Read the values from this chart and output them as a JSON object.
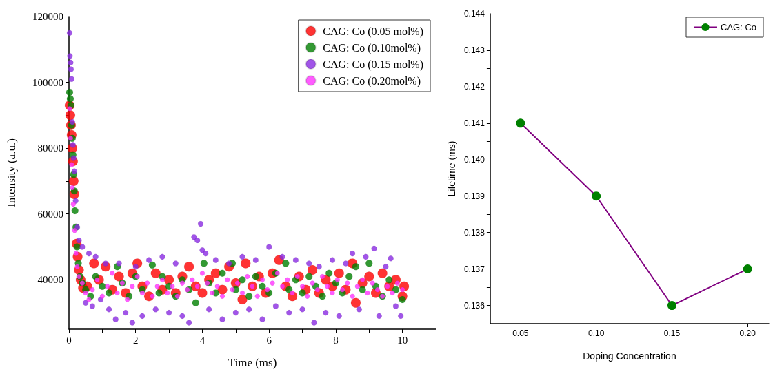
{
  "chart_data": [
    {
      "type": "scatter",
      "xlabel": "Time (ms)",
      "ylabel": "Intensity (a.u.)",
      "xlim": [
        0,
        11
      ],
      "ylim": [
        25000,
        120000
      ],
      "xticks": [
        0,
        {
          "value": 1,
          "label": null
        },
        2,
        {
          "value": 3,
          "label": null
        },
        4,
        {
          "value": 5,
          "label": null
        },
        6,
        {
          "value": 7,
          "label": null
        },
        8,
        {
          "value": 9,
          "label": null
        },
        10,
        {
          "value": 11,
          "label": null
        }
      ],
      "yticks": [
        {
          "value": 30000,
          "label": null
        },
        40000,
        {
          "value": 50000,
          "label": null
        },
        60000,
        {
          "value": 70000,
          "label": null
        },
        80000,
        {
          "value": 90000,
          "label": null
        },
        100000,
        {
          "value": 110000,
          "label": null
        },
        120000
      ],
      "legend": "top right",
      "marker": "circle",
      "grid": false,
      "series": [
        {
          "name": "CAG: Co (0.05 mol%)",
          "color": "#ff0000",
          "x": [
            0.02,
            0.04,
            0.06,
            0.08,
            0.1,
            0.12,
            0.14,
            0.16,
            0.18,
            0.2,
            0.23,
            0.26,
            0.3,
            0.35,
            0.42,
            0.55,
            0.75,
            0.9,
            1.1,
            1.3,
            1.5,
            1.7,
            1.9,
            2.05,
            2.2,
            2.4,
            2.6,
            2.8,
            3.0,
            3.2,
            3.4,
            3.6,
            3.8,
            4.0,
            4.2,
            4.4,
            4.6,
            4.8,
            5.0,
            5.2,
            5.3,
            5.5,
            5.7,
            5.9,
            6.1,
            6.3,
            6.5,
            6.7,
            6.9,
            7.1,
            7.3,
            7.5,
            7.7,
            7.9,
            8.1,
            8.3,
            8.5,
            8.6,
            8.8,
            9.0,
            9.2,
            9.4,
            9.6,
            9.8,
            10.0,
            10.05
          ],
          "values": [
            93000,
            90000,
            87000,
            84000,
            80000,
            76000,
            70000,
            66000,
            null,
            null,
            51000,
            47000,
            43000,
            40000,
            37500,
            38000,
            45000,
            40000,
            44000,
            37000,
            41000,
            36000,
            42000,
            45000,
            38000,
            35000,
            42000,
            37000,
            40000,
            36000,
            41000,
            44000,
            38000,
            36000,
            40000,
            42000,
            37000,
            44000,
            39000,
            34000,
            45000,
            38000,
            41000,
            36000,
            42000,
            46000,
            38000,
            35000,
            41000,
            37000,
            43000,
            36000,
            40000,
            38000,
            42000,
            37000,
            45000,
            33000,
            39000,
            41000,
            36000,
            42000,
            38000,
            40000,
            35000,
            38000
          ]
        },
        {
          "name": "CAG: Co (0.10mol%)",
          "color": "#008000",
          "x": [
            0.02,
            0.04,
            0.06,
            0.08,
            0.1,
            0.12,
            0.14,
            0.16,
            0.18,
            0.21,
            0.24,
            0.28,
            0.33,
            0.4,
            0.5,
            0.65,
            0.8,
            1.0,
            1.2,
            1.45,
            1.6,
            1.8,
            2.0,
            2.2,
            2.5,
            2.7,
            2.8,
            3.0,
            3.2,
            3.4,
            3.6,
            3.8,
            4.05,
            4.2,
            4.4,
            4.6,
            4.9,
            5.0,
            5.2,
            5.4,
            5.6,
            5.8,
            6.0,
            6.2,
            6.5,
            6.6,
            6.8,
            7.0,
            7.2,
            7.4,
            7.6,
            7.8,
            8.0,
            8.2,
            8.4,
            8.6,
            8.8,
            9.0,
            9.2,
            9.4,
            9.6,
            9.8,
            10.0
          ],
          "values": [
            97000,
            95000,
            93000,
            87000,
            83000,
            78000,
            72000,
            67000,
            61000,
            56000,
            50000,
            45000,
            41000,
            39000,
            37000,
            35000,
            41000,
            38000,
            36000,
            44000,
            39000,
            35000,
            41000,
            37000,
            44500,
            36000,
            41000,
            38000,
            35000,
            40000,
            37000,
            33000,
            45000,
            39000,
            36000,
            42000,
            45000,
            37000,
            40000,
            35000,
            41000,
            38000,
            36000,
            42000,
            45000,
            37000,
            40000,
            36000,
            41000,
            38000,
            35000,
            42000,
            39000,
            36000,
            41000,
            44000,
            37000,
            45000,
            38000,
            35000,
            40000,
            37000,
            34000
          ]
        },
        {
          "name": "CAG: Co (0.15 mol%)",
          "color": "#8a2be2",
          "x": [
            0.02,
            0.03,
            0.05,
            0.06,
            0.08,
            0.1,
            0.12,
            0.14,
            0.16,
            0.2,
            0.25,
            0.3,
            0.4,
            0.5,
            0.6,
            0.7,
            0.8,
            0.95,
            1.1,
            1.2,
            1.4,
            1.5,
            1.7,
            1.9,
            2.0,
            2.2,
            2.4,
            2.6,
            2.8,
            3.0,
            3.2,
            3.4,
            3.6,
            3.75,
            3.85,
            3.95,
            4.0,
            4.1,
            4.2,
            4.4,
            4.6,
            4.8,
            5.0,
            5.2,
            5.4,
            5.6,
            5.8,
            6.0,
            6.2,
            6.4,
            6.6,
            6.8,
            7.0,
            7.2,
            7.35,
            7.5,
            7.7,
            7.9,
            8.1,
            8.3,
            8.5,
            8.7,
            8.9,
            9.15,
            9.3,
            9.5,
            9.65,
            9.8,
            9.95
          ],
          "values": [
            115000,
            108000,
            106000,
            104000,
            101000,
            88000,
            81000,
            77000,
            73000,
            64000,
            56000,
            52000,
            50000,
            33000,
            48000,
            32000,
            47000,
            34000,
            45000,
            31000,
            28000,
            45000,
            30000,
            27000,
            44000,
            29000,
            46000,
            31000,
            47000,
            30000,
            45000,
            29000,
            27000,
            53000,
            52000,
            57000,
            49000,
            48000,
            31000,
            46000,
            28000,
            45000,
            30000,
            47000,
            31000,
            46000,
            28000,
            50000,
            32000,
            47000,
            30000,
            46000,
            31000,
            45000,
            27000,
            44000,
            30000,
            46000,
            29000,
            45000,
            48000,
            31000,
            47000,
            49500,
            29000,
            44000,
            46500,
            32000,
            29000
          ]
        },
        {
          "name": "CAG: Co (0.20mol%)",
          "color": "#ff33ff",
          "x": [
            0.02,
            0.05,
            0.08,
            0.1,
            0.13,
            0.17,
            0.21,
            0.25,
            0.3,
            0.4,
            0.5,
            0.6,
            0.7,
            0.85,
            1.0,
            1.15,
            1.3,
            1.45,
            1.6,
            1.75,
            1.9,
            2.05,
            2.2,
            2.35,
            2.5,
            2.65,
            2.8,
            2.95,
            3.1,
            3.25,
            3.4,
            3.55,
            3.7,
            3.85,
            4.0,
            4.15,
            4.3,
            4.45,
            4.6,
            4.75,
            4.9,
            5.05,
            5.2,
            5.35,
            5.5,
            5.65,
            5.8,
            5.95,
            6.1,
            6.25,
            6.4,
            6.55,
            6.7,
            6.85,
            7.0,
            7.15,
            7.3,
            7.45,
            7.6,
            7.75,
            7.9,
            8.05,
            8.2,
            8.35,
            8.5,
            8.65,
            8.8,
            8.95,
            9.1,
            9.25,
            9.4,
            9.55,
            9.7,
            9.85,
            10.0
          ],
          "values": [
            92000,
            83000,
            75000,
            68000,
            63000,
            55000,
            48000,
            44000,
            41000,
            39000,
            36000,
            34000,
            37000,
            40000,
            35000,
            38000,
            42000,
            36000,
            39000,
            34000,
            38000,
            41000,
            36000,
            39000,
            35000,
            38000,
            40000,
            36000,
            38000,
            35000,
            39000,
            37000,
            40000,
            38000,
            42000,
            39000,
            36000,
            38000,
            35000,
            40000,
            37000,
            39000,
            36000,
            41000,
            38000,
            35000,
            40000,
            37000,
            39000,
            42000,
            38000,
            40000,
            36000,
            41000,
            38000,
            35000,
            39000,
            37000,
            41000,
            38000,
            36000,
            40000,
            37000,
            39000,
            35000,
            38000,
            40000,
            36000,
            39000,
            37000,
            35000,
            38000,
            36000,
            39000,
            37000
          ]
        }
      ]
    },
    {
      "type": "line",
      "xlabel": "Doping Concentration",
      "ylabel": "Lifetime (ms)",
      "xlim": [
        0.03,
        0.214
      ],
      "ylim": [
        0.1355,
        0.144
      ],
      "xticks": [
        {
          "value": 0.05,
          "label": "0.05"
        },
        {
          "value": 0.075,
          "label": null
        },
        {
          "value": 0.1,
          "label": "0.10"
        },
        {
          "value": 0.125,
          "label": null
        },
        {
          "value": 0.15,
          "label": "0.15"
        },
        {
          "value": 0.175,
          "label": null
        },
        {
          "value": 0.2,
          "label": "0.20"
        }
      ],
      "yticks": [
        0.136,
        {
          "value": 0.1365,
          "label": null
        },
        0.137,
        {
          "value": 0.1375,
          "label": null
        },
        0.138,
        {
          "value": 0.1385,
          "label": null
        },
        0.139,
        {
          "value": 0.1395,
          "label": null
        },
        {
          "value": 0.14,
          "label": "0.140"
        },
        {
          "value": 0.1405,
          "label": null
        },
        0.141,
        {
          "value": 0.1415,
          "label": null
        },
        0.142,
        {
          "value": 0.1425,
          "label": null
        },
        0.143,
        {
          "value": 0.1435,
          "label": null
        },
        0.144
      ],
      "legend": "top right",
      "marker": "circle",
      "grid": false,
      "series": [
        {
          "name": "CAG: Co",
          "color": "#800080",
          "colors": [
            "#008000",
            "#008000",
            "#008000",
            "#008000"
          ],
          "x": [
            0.05,
            0.1,
            0.15,
            0.2
          ],
          "values": [
            0.141,
            0.139,
            0.136,
            0.137
          ]
        }
      ]
    }
  ]
}
